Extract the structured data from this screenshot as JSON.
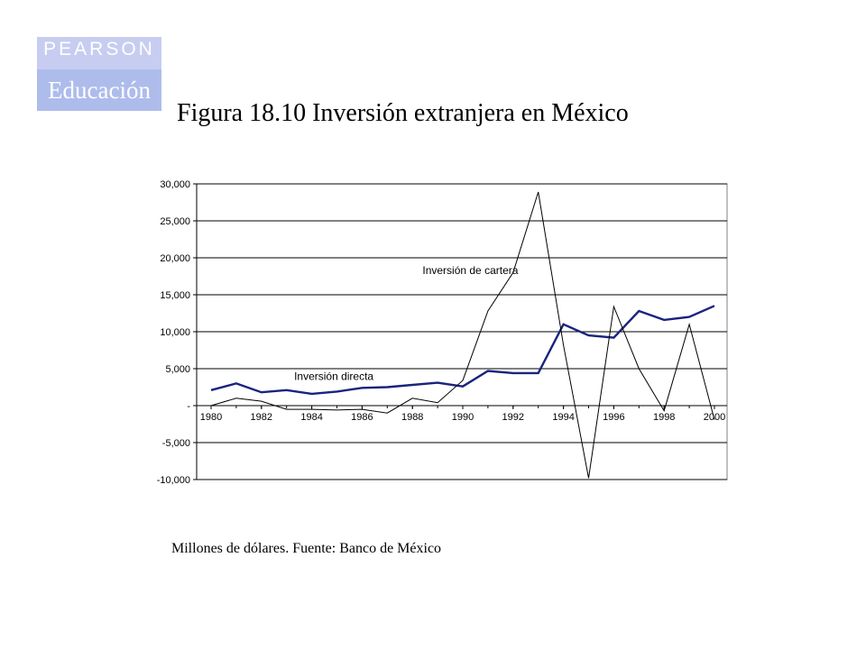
{
  "logo": {
    "brand": "PEARSON",
    "sub": "Educación",
    "colors": {
      "top": "#c7cdf0",
      "bottom": "#aebcec"
    }
  },
  "figure": {
    "title": "Figura 18.10 Inversión extranjera en México",
    "note": "Millones de dólares. Fuente: Banco de México"
  },
  "chart_data": {
    "type": "line",
    "title": "",
    "xlabel": "",
    "ylabel": "",
    "x": [
      1980,
      1981,
      1982,
      1983,
      1984,
      1985,
      1986,
      1987,
      1988,
      1989,
      1990,
      1991,
      1992,
      1993,
      1994,
      1995,
      1996,
      1997,
      1998,
      1999,
      2000
    ],
    "x_ticks": [
      "1980",
      "1982",
      "1984",
      "1986",
      "1988",
      "1990",
      "1992",
      "1994",
      "1996",
      "1998",
      "2000"
    ],
    "ylim": [
      -10000,
      30000
    ],
    "y_ticks": [
      {
        "value": 30000,
        "label": "30,000"
      },
      {
        "value": 25000,
        "label": "25,000"
      },
      {
        "value": 20000,
        "label": "20,000"
      },
      {
        "value": 15000,
        "label": "15,000"
      },
      {
        "value": 10000,
        "label": "10,000"
      },
      {
        "value": 5000,
        "label": "5,000"
      },
      {
        "value": 0,
        "label": "-"
      },
      {
        "value": -5000,
        "label": "-5,000"
      },
      {
        "value": -10000,
        "label": "-10,000"
      }
    ],
    "grid": "horizontal",
    "series": [
      {
        "name": "Inversión directa",
        "color": "#1a237e",
        "stroke": "thick",
        "values": [
          2100,
          3000,
          1800,
          2100,
          1600,
          1900,
          2400,
          2500,
          2800,
          3100,
          2600,
          4700,
          4400,
          4400,
          11000,
          9500,
          9200,
          12800,
          11600,
          12000,
          13500
        ]
      },
      {
        "name": "Inversión de cartera",
        "color": "#000000",
        "stroke": "thin",
        "values": [
          0,
          1000,
          600,
          -500,
          -500,
          -600,
          -500,
          -1000,
          1000,
          400,
          3400,
          12800,
          18000,
          28900,
          8200,
          -9800,
          13400,
          5000,
          -700,
          11000,
          -1900
        ]
      }
    ],
    "annotations": [
      {
        "series": 1,
        "text": "Inversión de cartera",
        "x": 1988.4,
        "y": 17800
      },
      {
        "series": 0,
        "text": "Inversión directa",
        "x": 1983.3,
        "y": 3500
      }
    ]
  }
}
